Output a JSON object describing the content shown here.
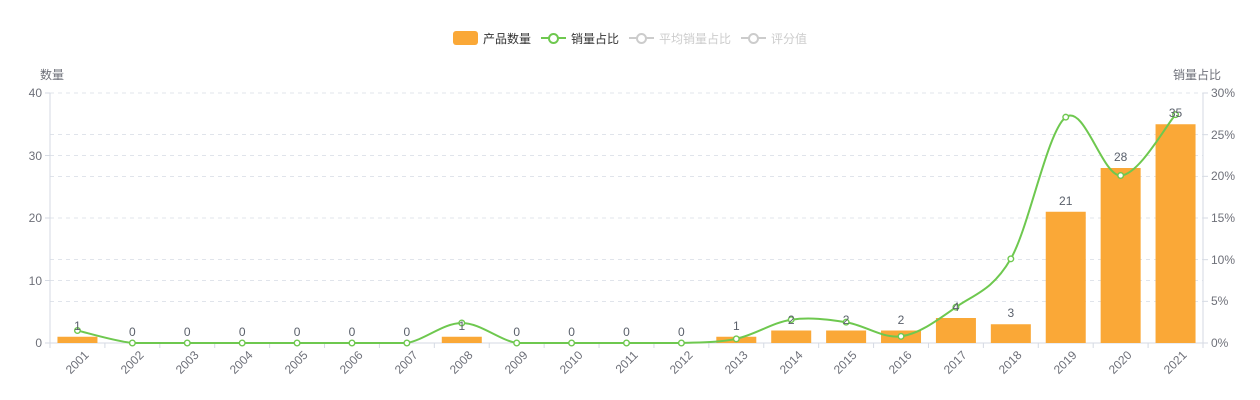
{
  "legend": {
    "position": "top-center",
    "items": [
      {
        "label": "产品数量",
        "type": "bar",
        "enabled": true
      },
      {
        "label": "销量占比",
        "type": "line",
        "enabled": true
      },
      {
        "label": "平均销量占比",
        "type": "line",
        "enabled": false
      },
      {
        "label": "评分值",
        "type": "line",
        "enabled": false
      }
    ]
  },
  "colors": {
    "bar": "#FAA837",
    "line": "#6EC84F",
    "disabled_legend": "#cccccc",
    "axis_text": "#6E7079",
    "bar_label_text": "#5A606B",
    "grid_line": "#E0E4EB",
    "axis_line": "#D5DAE3",
    "background": "#ffffff"
  },
  "chart_data": {
    "type": "bar",
    "subtype": "bar-line-combo",
    "title": "",
    "categories": [
      "2001",
      "2002",
      "2003",
      "2004",
      "2005",
      "2006",
      "2007",
      "2008",
      "2009",
      "2010",
      "2011",
      "2012",
      "2013",
      "2014",
      "2015",
      "2016",
      "2017",
      "2018",
      "2019",
      "2020",
      "2021"
    ],
    "series": [
      {
        "name": "产品数量",
        "type": "bar",
        "y_axis": "left",
        "color": "#FAA837",
        "values": [
          1,
          0,
          0,
          0,
          0,
          0,
          0,
          1,
          0,
          0,
          0,
          0,
          1,
          2,
          2,
          2,
          4,
          3,
          21,
          28,
          35
        ],
        "data_labels_shown": true
      },
      {
        "name": "销量占比",
        "type": "line",
        "smooth": true,
        "y_axis": "right",
        "color": "#6EC84F",
        "values_percent": [
          1.5,
          0,
          0,
          0,
          0,
          0,
          0,
          2.4,
          0,
          0,
          0,
          0,
          0.5,
          2.8,
          2.5,
          0.8,
          4.3,
          10.1,
          27.1,
          20.1,
          27.4
        ],
        "point_style": "hollow-circle"
      },
      {
        "name": "平均销量占比",
        "type": "line",
        "y_axis": "right",
        "enabled": false,
        "values_percent": []
      },
      {
        "name": "评分值",
        "type": "line",
        "enabled": false,
        "values_percent": []
      }
    ],
    "left_axis": {
      "name": "数量",
      "lim": [
        0,
        40
      ],
      "ticks": [
        0,
        10,
        20,
        30,
        40
      ],
      "tick_labels": [
        "0",
        "10",
        "20",
        "30",
        "40"
      ]
    },
    "right_axis": {
      "name": "销量占比",
      "lim": [
        0,
        30
      ],
      "ticks": [
        0,
        5,
        10,
        15,
        20,
        25,
        30
      ],
      "tick_labels": [
        "0%",
        "5%",
        "10%",
        "15%",
        "20%",
        "25%",
        "30%"
      ]
    },
    "x_axis": {
      "label_rotation_deg": 45
    },
    "grid": {
      "show": true,
      "style": "dashed"
    },
    "legend_position": "top-center"
  }
}
